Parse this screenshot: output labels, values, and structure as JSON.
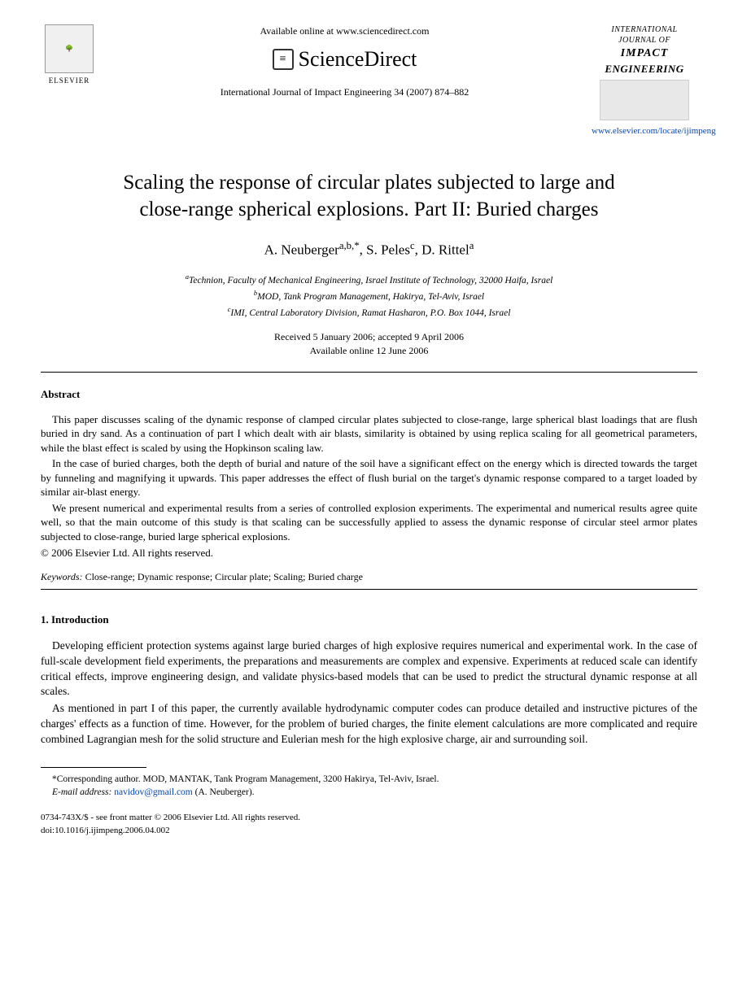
{
  "header": {
    "available_online": "Available online at www.sciencedirect.com",
    "sciencedirect": "ScienceDirect",
    "elsevier": "ELSEVIER",
    "citation": "International Journal of Impact Engineering 34 (2007) 874–882",
    "journal_small1": "INTERNATIONAL",
    "journal_small2": "JOURNAL OF",
    "journal_impact": "IMPACT",
    "journal_eng": "ENGINEERING",
    "journal_url": "www.elsevier.com/locate/ijimpeng"
  },
  "title_line1": "Scaling the response of circular plates subjected to large and",
  "title_line2": "close-range spherical explosions. Part II: Buried charges",
  "authors_html": "A. Neuberger<sup>a,b,*</sup>, S. Peles<sup>c</sup>, D. Rittel<sup>a</sup>",
  "affiliations": {
    "a": "Technion, Faculty of Mechanical Engineering, Israel Institute of Technology, 32000 Haifa, Israel",
    "b": "MOD, Tank Program Management, Hakirya, Tel-Aviv, Israel",
    "c": "IMI, Central Laboratory Division, Ramat Hasharon, P.O. Box 1044, Israel"
  },
  "dates": {
    "received": "Received 5 January 2006; accepted 9 April 2006",
    "online": "Available online 12 June 2006"
  },
  "abstract_heading": "Abstract",
  "abstract": {
    "p1": "This paper discusses scaling of the dynamic response of clamped circular plates subjected to close-range, large spherical blast loadings that are flush buried in dry sand. As a continuation of part I which dealt with air blasts, similarity is obtained by using replica scaling for all geometrical parameters, while the blast effect is scaled by using the Hopkinson scaling law.",
    "p2": "In the case of buried charges, both the depth of burial and nature of the soil have a significant effect on the energy which is directed towards the target by funneling and magnifying it upwards. This paper addresses the effect of flush burial on the target's dynamic response compared to a target loaded by similar air-blast energy.",
    "p3": "We present numerical and experimental results from a series of controlled explosion experiments. The experimental and numerical results agree quite well, so that the main outcome of this study is that scaling can be successfully applied to assess the dynamic response of circular steel armor plates subjected to close-range, buried large spherical explosions."
  },
  "copyright": "© 2006 Elsevier Ltd. All rights reserved.",
  "keywords_label": "Keywords:",
  "keywords": "Close-range; Dynamic response; Circular plate; Scaling; Buried charge",
  "section1_heading": "1.  Introduction",
  "section1": {
    "p1": "Developing efficient protection systems against large buried charges of high explosive requires numerical and experimental work. In the case of full-scale development field experiments, the preparations and measurements are complex and expensive. Experiments at reduced scale can identify critical effects, improve engineering design, and validate physics-based models that can be used to predict the structural dynamic response at all scales.",
    "p2": "As mentioned in part I of this paper, the currently available hydrodynamic computer codes can produce detailed and instructive pictures of the charges' effects as a function of time. However, for the problem of buried charges, the finite element calculations are more complicated and require combined Lagrangian mesh for the solid structure and Eulerian mesh for the high explosive charge, air and surrounding soil."
  },
  "footnote": {
    "corr": "*Corresponding author. MOD, MANTAK, Tank Program Management, 3200 Hakirya, Tel-Aviv, Israel.",
    "email_label": "E-mail address:",
    "email": "navidov@gmail.com",
    "email_author": "(A. Neuberger)."
  },
  "footer": {
    "line1": "0734-743X/$ - see front matter © 2006 Elsevier Ltd. All rights reserved.",
    "line2": "doi:10.1016/j.ijimpeng.2006.04.002"
  },
  "colors": {
    "text": "#000000",
    "link": "#0645ad",
    "background": "#ffffff"
  }
}
